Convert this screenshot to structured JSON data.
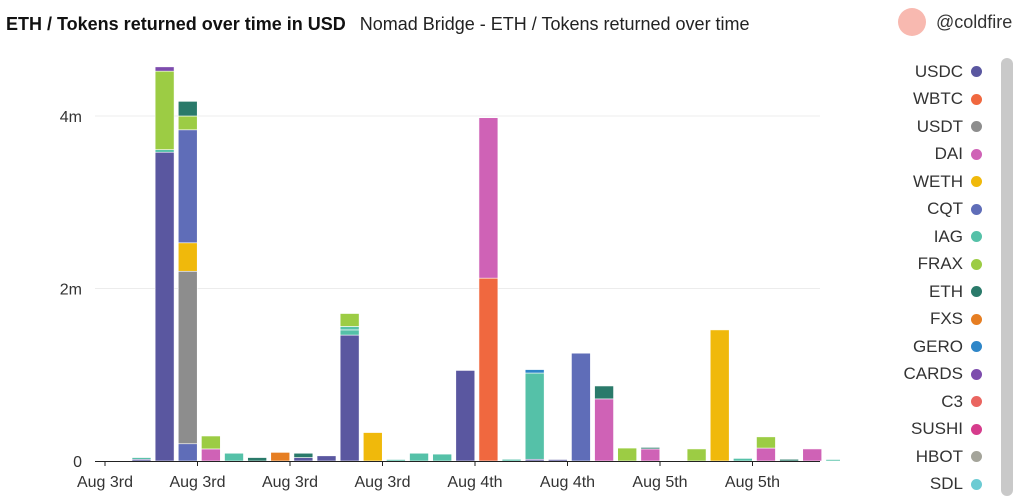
{
  "header": {
    "title": "ETH / Tokens returned over time in USD",
    "subtitle": "Nomad Bridge - ETH / Tokens returned over time",
    "author": "@coldfire"
  },
  "chart_data": {
    "type": "bar",
    "stacked": true,
    "ylim": [
      0,
      4.6
    ],
    "y_ticks": [
      0,
      2,
      4
    ],
    "y_tick_labels": [
      "0",
      "2m",
      "4m"
    ],
    "y_unit": "m",
    "x_tick_labels": [
      "Aug 3rd",
      "Aug 3rd",
      "Aug 3rd",
      "Aug 3rd",
      "Aug 4th",
      "Aug 4th",
      "Aug 5th",
      "Aug 5th"
    ],
    "grid": true,
    "legend_position": "right",
    "series_names": [
      "USDC",
      "WBTC",
      "USDT",
      "DAI",
      "WETH",
      "CQT",
      "IAG",
      "FRAX",
      "ETH",
      "FXS",
      "GERO",
      "CARDS",
      "C3",
      "SUSHI",
      "HBOT",
      "SDL"
    ],
    "colors": {
      "USDC": "#5a57a0",
      "WBTC": "#f0683f",
      "USDT": "#8d8d8d",
      "DAI": "#cf62b6",
      "WETH": "#f0b90b",
      "CQT": "#5f6db8",
      "IAG": "#55c1a8",
      "FRAX": "#9ccc44",
      "ETH": "#2a7a6a",
      "FXS": "#e67e22",
      "GERO": "#2e86c8",
      "CARDS": "#7d4cad",
      "C3": "#ea6560",
      "SUSHI": "#d63c8c",
      "HBOT": "#a4a49a",
      "SDL": "#6ccbd3"
    },
    "bars": [
      {
        "segments": [
          [
            "USDC",
            0.02
          ],
          [
            "IAG",
            0.02
          ]
        ]
      },
      {
        "segments": [
          [
            "USDC",
            3.58
          ],
          [
            "IAG",
            0.03
          ],
          [
            "FRAX",
            0.91
          ],
          [
            "CARDS",
            0.05
          ]
        ]
      },
      {
        "segments": [
          [
            "CQT",
            0.2
          ],
          [
            "USDT",
            2.0
          ],
          [
            "WETH",
            0.33
          ],
          [
            "CQT",
            1.31
          ],
          [
            "FRAX",
            0.16
          ],
          [
            "ETH",
            0.17
          ]
        ]
      },
      {
        "segments": [
          [
            "DAI",
            0.14
          ],
          [
            "FRAX",
            0.15
          ]
        ]
      },
      {
        "segments": [
          [
            "IAG",
            0.09
          ]
        ]
      },
      {
        "segments": [
          [
            "ETH",
            0.04
          ]
        ]
      },
      {
        "segments": [
          [
            "FXS",
            0.1
          ]
        ]
      },
      {
        "segments": [
          [
            "USDC",
            0.04
          ],
          [
            "ETH",
            0.05
          ]
        ]
      },
      {
        "segments": [
          [
            "USDC",
            0.06
          ]
        ]
      },
      {
        "segments": [
          [
            "USDC",
            1.46
          ],
          [
            "IAG",
            0.06
          ],
          [
            "IAG",
            0.04
          ],
          [
            "FRAX",
            0.15
          ]
        ]
      },
      {
        "segments": [
          [
            "WETH",
            0.33
          ]
        ]
      },
      {
        "segments": [
          [
            "IAG",
            0.01
          ]
        ]
      },
      {
        "segments": [
          [
            "IAG",
            0.09
          ]
        ]
      },
      {
        "segments": [
          [
            "IAG",
            0.08
          ]
        ]
      },
      {
        "segments": [
          [
            "USDC",
            1.05
          ]
        ]
      },
      {
        "segments": [
          [
            "WBTC",
            2.12
          ],
          [
            "DAI",
            1.86
          ]
        ]
      },
      {
        "segments": [
          [
            "IAG",
            0.02
          ]
        ]
      },
      {
        "segments": [
          [
            "USDC",
            0.02
          ],
          [
            "IAG",
            1.0
          ],
          [
            "GERO",
            0.04
          ]
        ]
      },
      {
        "segments": [
          [
            "USDC",
            0.01
          ]
        ]
      },
      {
        "segments": [
          [
            "CQT",
            1.25
          ]
        ]
      },
      {
        "segments": [
          [
            "DAI",
            0.72
          ],
          [
            "ETH",
            0.15
          ]
        ]
      },
      {
        "segments": [
          [
            "FRAX",
            0.15
          ]
        ]
      },
      {
        "segments": [
          [
            "DAI",
            0.14
          ],
          [
            "ETH",
            0.01
          ]
        ]
      },
      {
        "segments": []
      },
      {
        "segments": [
          [
            "FRAX",
            0.14
          ]
        ]
      },
      {
        "segments": [
          [
            "WETH",
            1.52
          ]
        ]
      },
      {
        "segments": [
          [
            "IAG",
            0.03
          ]
        ]
      },
      {
        "segments": [
          [
            "DAI",
            0.15
          ],
          [
            "FRAX",
            0.13
          ]
        ]
      },
      {
        "segments": [
          [
            "ETH",
            0.02
          ]
        ]
      },
      {
        "segments": [
          [
            "DAI",
            0.14
          ]
        ]
      },
      {
        "segments": [
          [
            "IAG",
            0.01
          ]
        ]
      }
    ]
  }
}
